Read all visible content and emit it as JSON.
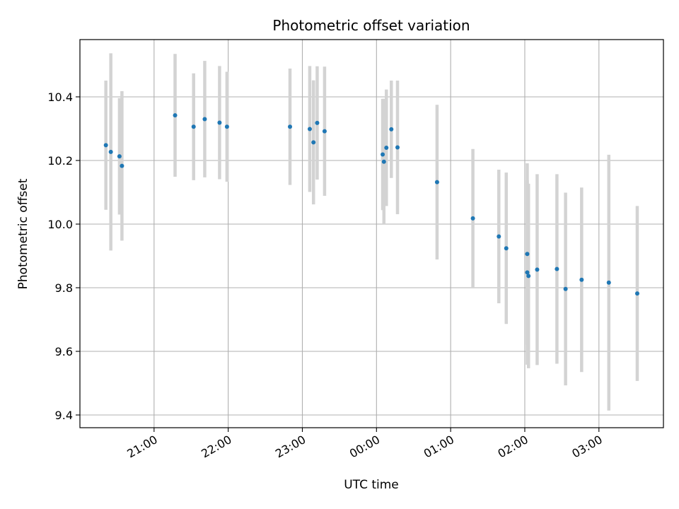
{
  "chart_data": {
    "type": "scatter",
    "title": "Photometric offset variation",
    "xlabel": "UTC time",
    "ylabel": "Photometric offset",
    "x_axis": {
      "scale": "time",
      "range_hours": [
        20.0,
        3.87
      ],
      "ticks": [
        {
          "hour": 21,
          "label": "21:00"
        },
        {
          "hour": 22,
          "label": "22:00"
        },
        {
          "hour": 23,
          "label": "23:00"
        },
        {
          "hour": 0,
          "label": "00:00"
        },
        {
          "hour": 1,
          "label": "01:00"
        },
        {
          "hour": 2,
          "label": "02:00"
        },
        {
          "hour": 3,
          "label": "03:00"
        }
      ]
    },
    "y_axis": {
      "range": [
        9.36,
        10.58
      ],
      "ticks": [
        {
          "value": 9.4,
          "label": "9.4"
        },
        {
          "value": 9.6,
          "label": "9.6"
        },
        {
          "value": 9.8,
          "label": "9.8"
        },
        {
          "value": 10.0,
          "label": "10.0"
        },
        {
          "value": 10.2,
          "label": "10.2"
        },
        {
          "value": 10.4,
          "label": "10.4"
        }
      ]
    },
    "grid": true,
    "legend": "none",
    "colors": {
      "marker": "#1f77b4",
      "errorbar": "#d3d3d3",
      "grid": "#b0b0b0"
    },
    "points": [
      {
        "time": "20:21",
        "y": 10.248,
        "err": 0.203
      },
      {
        "time": "20:25",
        "y": 10.227,
        "err": 0.31
      },
      {
        "time": "20:32",
        "y": 10.213,
        "err": 0.183
      },
      {
        "time": "20:34",
        "y": 10.183,
        "err": 0.235
      },
      {
        "time": "21:17",
        "y": 10.342,
        "err": 0.193
      },
      {
        "time": "21:32",
        "y": 10.306,
        "err": 0.168
      },
      {
        "time": "21:41",
        "y": 10.33,
        "err": 0.183
      },
      {
        "time": "21:53",
        "y": 10.319,
        "err": 0.178
      },
      {
        "time": "21:59",
        "y": 10.306,
        "err": 0.173
      },
      {
        "time": "22:50",
        "y": 10.306,
        "err": 0.183
      },
      {
        "time": "23:06",
        "y": 10.299,
        "err": 0.198
      },
      {
        "time": "23:09",
        "y": 10.257,
        "err": 0.195
      },
      {
        "time": "23:12",
        "y": 10.318,
        "err": 0.178
      },
      {
        "time": "23:18",
        "y": 10.292,
        "err": 0.203
      },
      {
        "time": "00:05",
        "y": 10.219,
        "err": 0.175
      },
      {
        "time": "00:06",
        "y": 10.196,
        "err": 0.198
      },
      {
        "time": "00:08",
        "y": 10.24,
        "err": 0.183
      },
      {
        "time": "00:12",
        "y": 10.298,
        "err": 0.153
      },
      {
        "time": "00:17",
        "y": 10.241,
        "err": 0.21
      },
      {
        "time": "00:49",
        "y": 10.132,
        "err": 0.243
      },
      {
        "time": "01:18",
        "y": 10.018,
        "err": 0.218
      },
      {
        "time": "01:39",
        "y": 9.961,
        "err": 0.21
      },
      {
        "time": "01:45",
        "y": 9.924,
        "err": 0.238
      },
      {
        "time": "02:02",
        "y": 9.906,
        "err": 0.285
      },
      {
        "time": "02:02",
        "y": 9.848,
        "err": 0.29
      },
      {
        "time": "02:03",
        "y": 9.837,
        "err": 0.29
      },
      {
        "time": "02:10",
        "y": 9.857,
        "err": 0.3
      },
      {
        "time": "02:26",
        "y": 9.859,
        "err": 0.298
      },
      {
        "time": "02:33",
        "y": 9.796,
        "err": 0.303
      },
      {
        "time": "02:46",
        "y": 9.825,
        "err": 0.29
      },
      {
        "time": "03:08",
        "y": 9.816,
        "err": 0.402
      },
      {
        "time": "03:31",
        "y": 9.782,
        "err": 0.275
      }
    ]
  }
}
